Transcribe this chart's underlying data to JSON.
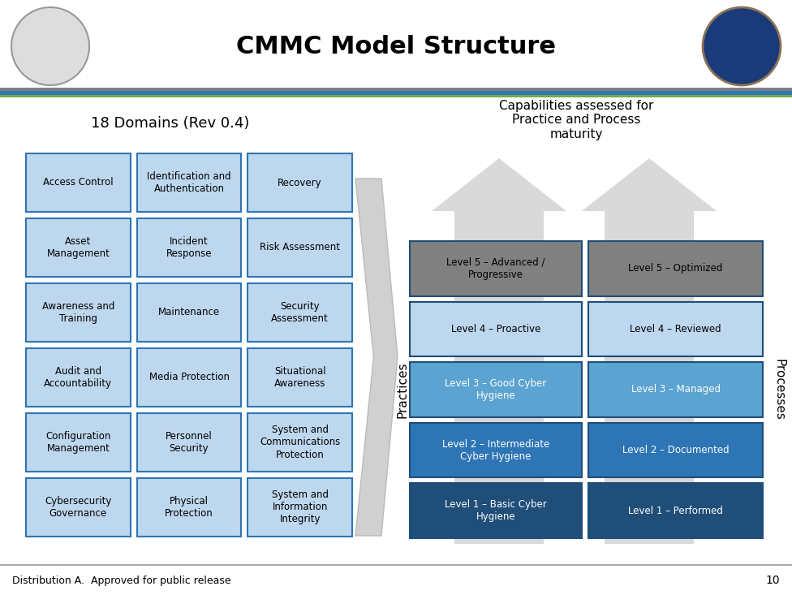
{
  "title": "CMMC Model Structure",
  "subtitle_left": "18 Domains (Rev 0.4)",
  "subtitle_right": "Capabilities assessed for\nPractice and Process\nmaturity",
  "footer": "Distribution A.  Approved for public release",
  "page_number": "10",
  "domains": [
    [
      "Access Control",
      "Identification and\nAuthentication",
      "Recovery"
    ],
    [
      "Asset\nManagement",
      "Incident\nResponse",
      "Risk Assessment"
    ],
    [
      "Awareness and\nTraining",
      "Maintenance",
      "Security\nAssessment"
    ],
    [
      "Audit and\nAccountability",
      "Media Protection",
      "Situational\nAwareness"
    ],
    [
      "Configuration\nManagement",
      "Personnel\nSecurity",
      "System and\nCommunications\nProtection"
    ],
    [
      "Cybersecurity\nGovernance",
      "Physical\nProtection",
      "System and\nInformation\nIntegrity"
    ]
  ],
  "domain_box_color": "#BDD7EE",
  "domain_box_edgecolor": "#2E75B6",
  "levels_left": [
    "Level 5 – Advanced /\nProgressive",
    "Level 4 – Proactive",
    "Level 3 – Good Cyber\nHygiene",
    "Level 2 – Intermediate\nCyber Hygiene",
    "Level 1 – Basic Cyber\nHygiene"
  ],
  "levels_right": [
    "Level 5 – Optimized",
    "Level 4 – Reviewed",
    "Level 3 – Managed",
    "Level 2 – Documented",
    "Level 1 – Performed"
  ],
  "level_colors_left": [
    "#808080",
    "#BDD7EE",
    "#5BA3D0",
    "#2E75B6",
    "#1F4E79"
  ],
  "level_colors_right": [
    "#808080",
    "#BDD7EE",
    "#5BA3D0",
    "#2E75B6",
    "#1F4E79"
  ],
  "level_text_colors": [
    "#000000",
    "#000000",
    "#ffffff",
    "#ffffff",
    "#ffffff"
  ],
  "header_line_color1": "#2E75B6",
  "header_line_color2": "#70AD47",
  "header_line_color3": "#808080",
  "bg_color": "#ffffff",
  "arrow_color": "#D9D9D9",
  "practices_label": "Practices",
  "processes_label": "Processes"
}
